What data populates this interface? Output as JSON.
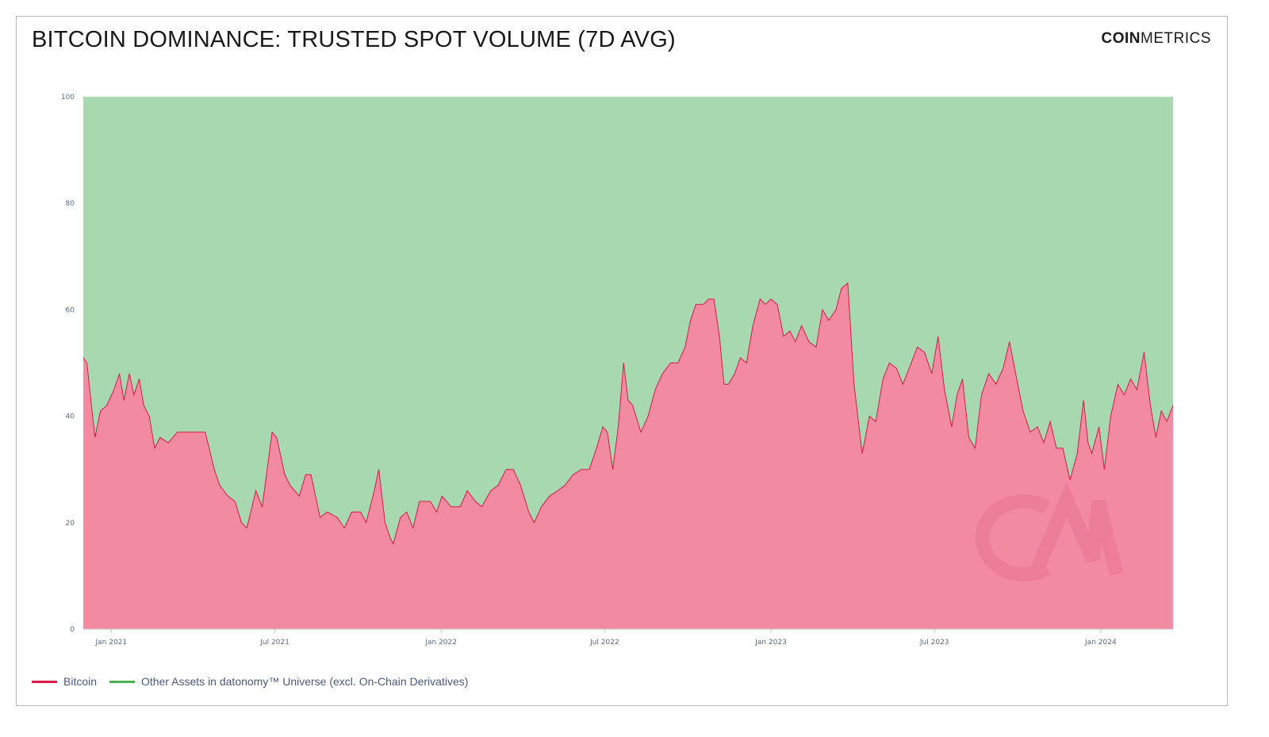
{
  "title": "BITCOIN DOMINANCE: TRUSTED SPOT VOLUME (7D AVG)",
  "brand": {
    "bold": "COIN",
    "light": "METRICS"
  },
  "colors": {
    "bitcoin_line": "#d81b45",
    "bitcoin_fill": "#f28aa2",
    "other_fill": "#a8d8b0",
    "other_legend": "#4caf50"
  },
  "chart_data": {
    "type": "area",
    "stacked": true,
    "ylim": [
      0,
      100
    ],
    "yticks": [
      0,
      20,
      40,
      60,
      80,
      100
    ],
    "xlim": [
      "2020-12-01",
      "2024-03-21"
    ],
    "xticks": [
      {
        "date": "2021-01-01",
        "label": "Jan 2021"
      },
      {
        "date": "2021-07-01",
        "label": "Jul 2021"
      },
      {
        "date": "2022-01-01",
        "label": "Jan 2022"
      },
      {
        "date": "2022-07-01",
        "label": "Jul 2022"
      },
      {
        "date": "2023-01-01",
        "label": "Jan 2023"
      },
      {
        "date": "2023-07-01",
        "label": "Jul 2023"
      },
      {
        "date": "2024-01-01",
        "label": "Jan 2024"
      }
    ],
    "legend_position": "bottom-left",
    "series": [
      {
        "name": "Bitcoin",
        "points": [
          [
            "2020-12-01",
            51
          ],
          [
            "2020-12-05",
            50
          ],
          [
            "2020-12-10",
            42
          ],
          [
            "2020-12-14",
            36
          ],
          [
            "2020-12-20",
            41
          ],
          [
            "2020-12-27",
            42
          ],
          [
            "2021-01-04",
            45
          ],
          [
            "2021-01-10",
            48
          ],
          [
            "2021-01-15",
            43
          ],
          [
            "2021-01-21",
            48
          ],
          [
            "2021-01-26",
            44
          ],
          [
            "2021-02-01",
            47
          ],
          [
            "2021-02-06",
            42
          ],
          [
            "2021-02-12",
            40
          ],
          [
            "2021-02-18",
            34
          ],
          [
            "2021-02-24",
            36
          ],
          [
            "2021-03-05",
            35
          ],
          [
            "2021-03-15",
            37
          ],
          [
            "2021-04-01",
            37
          ],
          [
            "2021-04-15",
            37
          ],
          [
            "2021-04-25",
            30
          ],
          [
            "2021-05-01",
            27
          ],
          [
            "2021-05-10",
            25
          ],
          [
            "2021-05-18",
            24
          ],
          [
            "2021-05-25",
            20
          ],
          [
            "2021-05-31",
            19
          ],
          [
            "2021-06-10",
            26
          ],
          [
            "2021-06-17",
            23
          ],
          [
            "2021-06-28",
            37
          ],
          [
            "2021-07-03",
            36
          ],
          [
            "2021-07-12",
            29
          ],
          [
            "2021-07-18",
            27
          ],
          [
            "2021-07-28",
            25
          ],
          [
            "2021-08-04",
            29
          ],
          [
            "2021-08-10",
            29
          ],
          [
            "2021-08-20",
            21
          ],
          [
            "2021-08-28",
            22
          ],
          [
            "2021-09-08",
            21
          ],
          [
            "2021-09-16",
            19
          ],
          [
            "2021-09-24",
            22
          ],
          [
            "2021-10-04",
            22
          ],
          [
            "2021-10-10",
            20
          ],
          [
            "2021-10-19",
            26
          ],
          [
            "2021-10-24",
            30
          ],
          [
            "2021-10-31",
            20
          ],
          [
            "2021-11-06",
            17
          ],
          [
            "2021-11-09",
            16
          ],
          [
            "2021-11-17",
            21
          ],
          [
            "2021-11-24",
            22
          ],
          [
            "2021-12-01",
            19
          ],
          [
            "2021-12-08",
            24
          ],
          [
            "2021-12-20",
            24
          ],
          [
            "2021-12-27",
            22
          ],
          [
            "2022-01-02",
            25
          ],
          [
            "2022-01-12",
            23
          ],
          [
            "2022-01-22",
            23
          ],
          [
            "2022-01-30",
            26
          ],
          [
            "2022-02-08",
            24
          ],
          [
            "2022-02-15",
            23
          ],
          [
            "2022-02-25",
            26
          ],
          [
            "2022-03-05",
            27
          ],
          [
            "2022-03-14",
            30
          ],
          [
            "2022-03-22",
            30
          ],
          [
            "2022-03-30",
            27
          ],
          [
            "2022-04-08",
            22
          ],
          [
            "2022-04-14",
            20
          ],
          [
            "2022-04-22",
            23
          ],
          [
            "2022-05-01",
            25
          ],
          [
            "2022-05-10",
            26
          ],
          [
            "2022-05-18",
            27
          ],
          [
            "2022-05-27",
            29
          ],
          [
            "2022-06-05",
            30
          ],
          [
            "2022-06-14",
            30
          ],
          [
            "2022-06-22",
            34
          ],
          [
            "2022-06-29",
            38
          ],
          [
            "2022-07-04",
            37
          ],
          [
            "2022-07-10",
            30
          ],
          [
            "2022-07-16",
            38
          ],
          [
            "2022-07-22",
            50
          ],
          [
            "2022-07-27",
            43
          ],
          [
            "2022-08-01",
            42
          ],
          [
            "2022-08-10",
            37
          ],
          [
            "2022-08-18",
            40
          ],
          [
            "2022-08-26",
            45
          ],
          [
            "2022-09-03",
            48
          ],
          [
            "2022-09-12",
            50
          ],
          [
            "2022-09-20",
            50
          ],
          [
            "2022-09-28",
            53
          ],
          [
            "2022-10-04",
            58
          ],
          [
            "2022-10-10",
            61
          ],
          [
            "2022-10-18",
            61
          ],
          [
            "2022-10-24",
            62
          ],
          [
            "2022-10-30",
            62
          ],
          [
            "2022-11-05",
            55
          ],
          [
            "2022-11-10",
            46
          ],
          [
            "2022-11-15",
            46
          ],
          [
            "2022-11-22",
            48
          ],
          [
            "2022-11-28",
            51
          ],
          [
            "2022-12-05",
            50
          ],
          [
            "2022-12-12",
            57
          ],
          [
            "2022-12-20",
            62
          ],
          [
            "2022-12-26",
            61
          ],
          [
            "2023-01-01",
            62
          ],
          [
            "2023-01-08",
            61
          ],
          [
            "2023-01-15",
            55
          ],
          [
            "2023-01-22",
            56
          ],
          [
            "2023-01-28",
            54
          ],
          [
            "2023-02-04",
            57
          ],
          [
            "2023-02-12",
            54
          ],
          [
            "2023-02-20",
            53
          ],
          [
            "2023-02-27",
            60
          ],
          [
            "2023-03-06",
            58
          ],
          [
            "2023-03-14",
            60
          ],
          [
            "2023-03-20",
            64
          ],
          [
            "2023-03-27",
            65
          ],
          [
            "2023-04-03",
            46
          ],
          [
            "2023-04-12",
            33
          ],
          [
            "2023-04-20",
            40
          ],
          [
            "2023-04-27",
            39
          ],
          [
            "2023-05-05",
            47
          ],
          [
            "2023-05-12",
            50
          ],
          [
            "2023-05-20",
            49
          ],
          [
            "2023-05-27",
            46
          ],
          [
            "2023-06-03",
            49
          ],
          [
            "2023-06-12",
            53
          ],
          [
            "2023-06-20",
            52
          ],
          [
            "2023-06-28",
            48
          ],
          [
            "2023-07-05",
            55
          ],
          [
            "2023-07-12",
            45
          ],
          [
            "2023-07-20",
            38
          ],
          [
            "2023-07-26",
            44
          ],
          [
            "2023-08-01",
            47
          ],
          [
            "2023-08-08",
            36
          ],
          [
            "2023-08-15",
            34
          ],
          [
            "2023-08-22",
            44
          ],
          [
            "2023-08-30",
            48
          ],
          [
            "2023-09-07",
            46
          ],
          [
            "2023-09-15",
            49
          ],
          [
            "2023-09-22",
            54
          ],
          [
            "2023-09-30",
            47
          ],
          [
            "2023-10-07",
            41
          ],
          [
            "2023-10-15",
            37
          ],
          [
            "2023-10-23",
            38
          ],
          [
            "2023-10-30",
            35
          ],
          [
            "2023-11-06",
            39
          ],
          [
            "2023-11-13",
            34
          ],
          [
            "2023-11-20",
            34
          ],
          [
            "2023-11-28",
            28
          ],
          [
            "2023-12-06",
            33
          ],
          [
            "2023-12-13",
            43
          ],
          [
            "2023-12-18",
            35
          ],
          [
            "2023-12-22",
            33
          ],
          [
            "2023-12-30",
            38
          ],
          [
            "2024-01-05",
            30
          ],
          [
            "2024-01-12",
            40
          ],
          [
            "2024-01-20",
            46
          ],
          [
            "2024-01-27",
            44
          ],
          [
            "2024-02-03",
            47
          ],
          [
            "2024-02-10",
            45
          ],
          [
            "2024-02-18",
            52
          ],
          [
            "2024-02-25",
            42
          ],
          [
            "2024-03-02",
            36
          ],
          [
            "2024-03-08",
            41
          ],
          [
            "2024-03-14",
            39
          ],
          [
            "2024-03-21",
            42
          ]
        ]
      },
      {
        "name": "Other Assets in datonomy™ Universe (excl. On-Chain Derivatives)",
        "stack_top": 100
      }
    ]
  }
}
